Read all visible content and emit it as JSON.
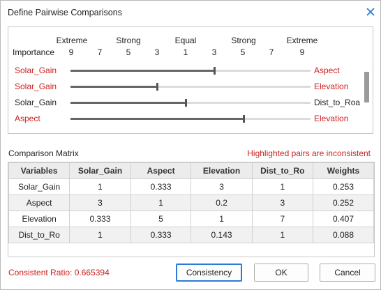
{
  "window": {
    "title": "Define Pairwise Comparisons"
  },
  "scale": {
    "importance_label": "Importance",
    "top_labels": [
      "Extreme",
      "Strong",
      "Equal",
      "Strong",
      "Extreme"
    ],
    "numbers": [
      "9",
      "7",
      "5",
      "3",
      "1",
      "3",
      "5",
      "7",
      "9"
    ]
  },
  "pairs": [
    {
      "left": "Solar_Gain",
      "right": "Aspect",
      "left_highlighted": true,
      "right_highlighted": true,
      "value_fraction": 0.6
    },
    {
      "left": "Solar_Gain",
      "right": "Elevation",
      "left_highlighted": true,
      "right_highlighted": true,
      "value_fraction": 0.36
    },
    {
      "left": "Solar_Gain",
      "right": "Dist_to_Roa",
      "left_highlighted": false,
      "right_highlighted": false,
      "value_fraction": 0.48
    },
    {
      "left": "Aspect",
      "right": "Elevation",
      "left_highlighted": true,
      "right_highlighted": true,
      "value_fraction": 0.72
    }
  ],
  "matrix": {
    "title": "Comparison Matrix",
    "warning": "Highlighted pairs are inconsistent",
    "headers": [
      "Variables",
      "Solar_Gain",
      "Aspect",
      "Elevation",
      "Dist_to_Ro",
      "Weights"
    ],
    "rows": [
      [
        "Solar_Gain",
        "1",
        "0.333",
        "3",
        "1",
        "0.253"
      ],
      [
        "Aspect",
        "3",
        "1",
        "0.2",
        "3",
        "0.252"
      ],
      [
        "Elevation",
        "0.333",
        "5",
        "1",
        "7",
        "0.407"
      ],
      [
        "Dist_to_Ro",
        "1",
        "0.333",
        "0.143",
        "1",
        "0.088"
      ]
    ]
  },
  "footer": {
    "ratio_text": "Consistent Ratio: 0.665394",
    "consistency_label": "Consistency",
    "ok_label": "OK",
    "cancel_label": "Cancel"
  },
  "colors": {
    "highlight": "#cc1f1f",
    "accent": "#2b7bd5"
  }
}
